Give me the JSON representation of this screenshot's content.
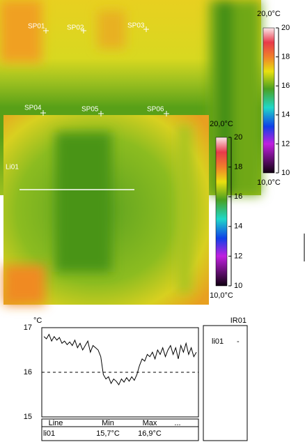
{
  "images": [
    {
      "spots": [
        "SP01",
        "SP02",
        "SP03"
      ],
      "scale": {
        "max_label": "20,0°C",
        "min_label": "10,0°C",
        "ticks": [
          10,
          12,
          14,
          16,
          18,
          20
        ],
        "lim": [
          10,
          20
        ]
      }
    },
    {
      "spots": [
        "SP04",
        "SP05",
        "SP06"
      ],
      "line": "Li01",
      "scale": {
        "max_label": "20,0°C",
        "min_label": "10,0°C",
        "ticks": [
          10,
          12,
          14,
          16,
          18,
          20
        ],
        "lim": [
          10,
          20
        ]
      }
    }
  ],
  "chart_data": {
    "type": "line",
    "y_label": "°C",
    "ylim": [
      15,
      17
    ],
    "yticks": [
      15,
      16,
      17
    ],
    "color": "#000000",
    "values": [
      16.8,
      16.75,
      16.85,
      16.7,
      16.8,
      16.72,
      16.78,
      16.65,
      16.7,
      16.62,
      16.68,
      16.6,
      16.72,
      16.55,
      16.65,
      16.5,
      16.6,
      16.7,
      16.45,
      16.6,
      16.55,
      16.5,
      16.35,
      15.95,
      15.85,
      15.9,
      15.75,
      15.85,
      15.8,
      15.72,
      15.85,
      15.78,
      15.88,
      15.8,
      15.9,
      15.82,
      15.95,
      16.15,
      16.3,
      16.25,
      16.4,
      16.35,
      16.45,
      16.3,
      16.5,
      16.4,
      16.55,
      16.35,
      16.5,
      16.6,
      16.4,
      16.55,
      16.3,
      16.6,
      16.45,
      16.65,
      16.4,
      16.55,
      16.35,
      16.45
    ],
    "table": {
      "header": [
        "Line",
        "Min",
        "Max",
        "..."
      ],
      "rows": [
        [
          "li01",
          "15,7°C",
          "16,9°C"
        ]
      ]
    }
  },
  "side_panel": {
    "title": "IR01",
    "rows": [
      [
        "li01",
        "-"
      ]
    ]
  }
}
